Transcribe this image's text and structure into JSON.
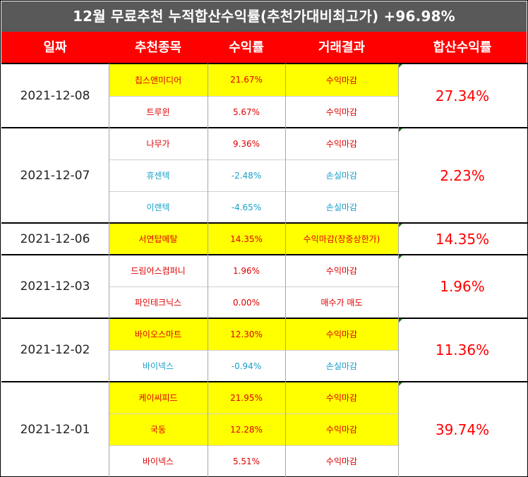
{
  "title": "12월 무료추천 누적합산수익률(추천가대비최고가) +96.98%",
  "headers": [
    "일짜",
    "추천종목",
    "수익률",
    "거래결과",
    "합산수익률"
  ],
  "colors": {
    "banner": "#595959",
    "header": "#ff0000",
    "highlight": "#ffff00",
    "profit": "#e00000",
    "loss": "#1aa0c8"
  },
  "groups": [
    {
      "date": "2021-12-08",
      "total": "27.34%",
      "rows": [
        {
          "name": "칩스앤미디어",
          "ret": "21.67%",
          "result": "수익마감",
          "hl": true,
          "tone": "pos"
        },
        {
          "name": "트루윈",
          "ret": "5.67%",
          "result": "수익마감",
          "hl": false,
          "tone": "pos"
        }
      ]
    },
    {
      "date": "2021-12-07",
      "total": "2.23%",
      "rows": [
        {
          "name": "나무가",
          "ret": "9.36%",
          "result": "수익마감",
          "hl": false,
          "tone": "pos"
        },
        {
          "name": "휴센텍",
          "ret": "-2.48%",
          "result": "손실마감",
          "hl": false,
          "tone": "neg"
        },
        {
          "name": "이랜텍",
          "ret": "-4.65%",
          "result": "손실마감",
          "hl": false,
          "tone": "neg"
        }
      ]
    },
    {
      "date": "2021-12-06",
      "total": "14.35%",
      "rows": [
        {
          "name": "서연탑메탈",
          "ret": "14.35%",
          "result": "수익마감(장중상한가)",
          "hl": true,
          "tone": "pos"
        }
      ]
    },
    {
      "date": "2021-12-03",
      "total": "1.96%",
      "rows": [
        {
          "name": "드림어스컴퍼니",
          "ret": "1.96%",
          "result": "수익마감",
          "hl": false,
          "tone": "pos"
        },
        {
          "name": "파인테크닉스",
          "ret": "0.00%",
          "result": "매수가 매도",
          "hl": false,
          "tone": "pos"
        }
      ]
    },
    {
      "date": "2021-12-02",
      "total": "11.36%",
      "rows": [
        {
          "name": "바이오스마트",
          "ret": "12.30%",
          "result": "수익마감",
          "hl": true,
          "tone": "pos"
        },
        {
          "name": "바이넥스",
          "ret": "-0.94%",
          "result": "손실마감",
          "hl": false,
          "tone": "neg"
        }
      ]
    },
    {
      "date": "2021-12-01",
      "total": "39.74%",
      "rows": [
        {
          "name": "케이씨피드",
          "ret": "21.95%",
          "result": "수익마감",
          "hl": true,
          "tone": "pos"
        },
        {
          "name": "국동",
          "ret": "12.28%",
          "result": "수익마감",
          "hl": true,
          "tone": "pos"
        },
        {
          "name": "바이넥스",
          "ret": "5.51%",
          "result": "수익마감",
          "hl": false,
          "tone": "pos"
        }
      ]
    }
  ]
}
